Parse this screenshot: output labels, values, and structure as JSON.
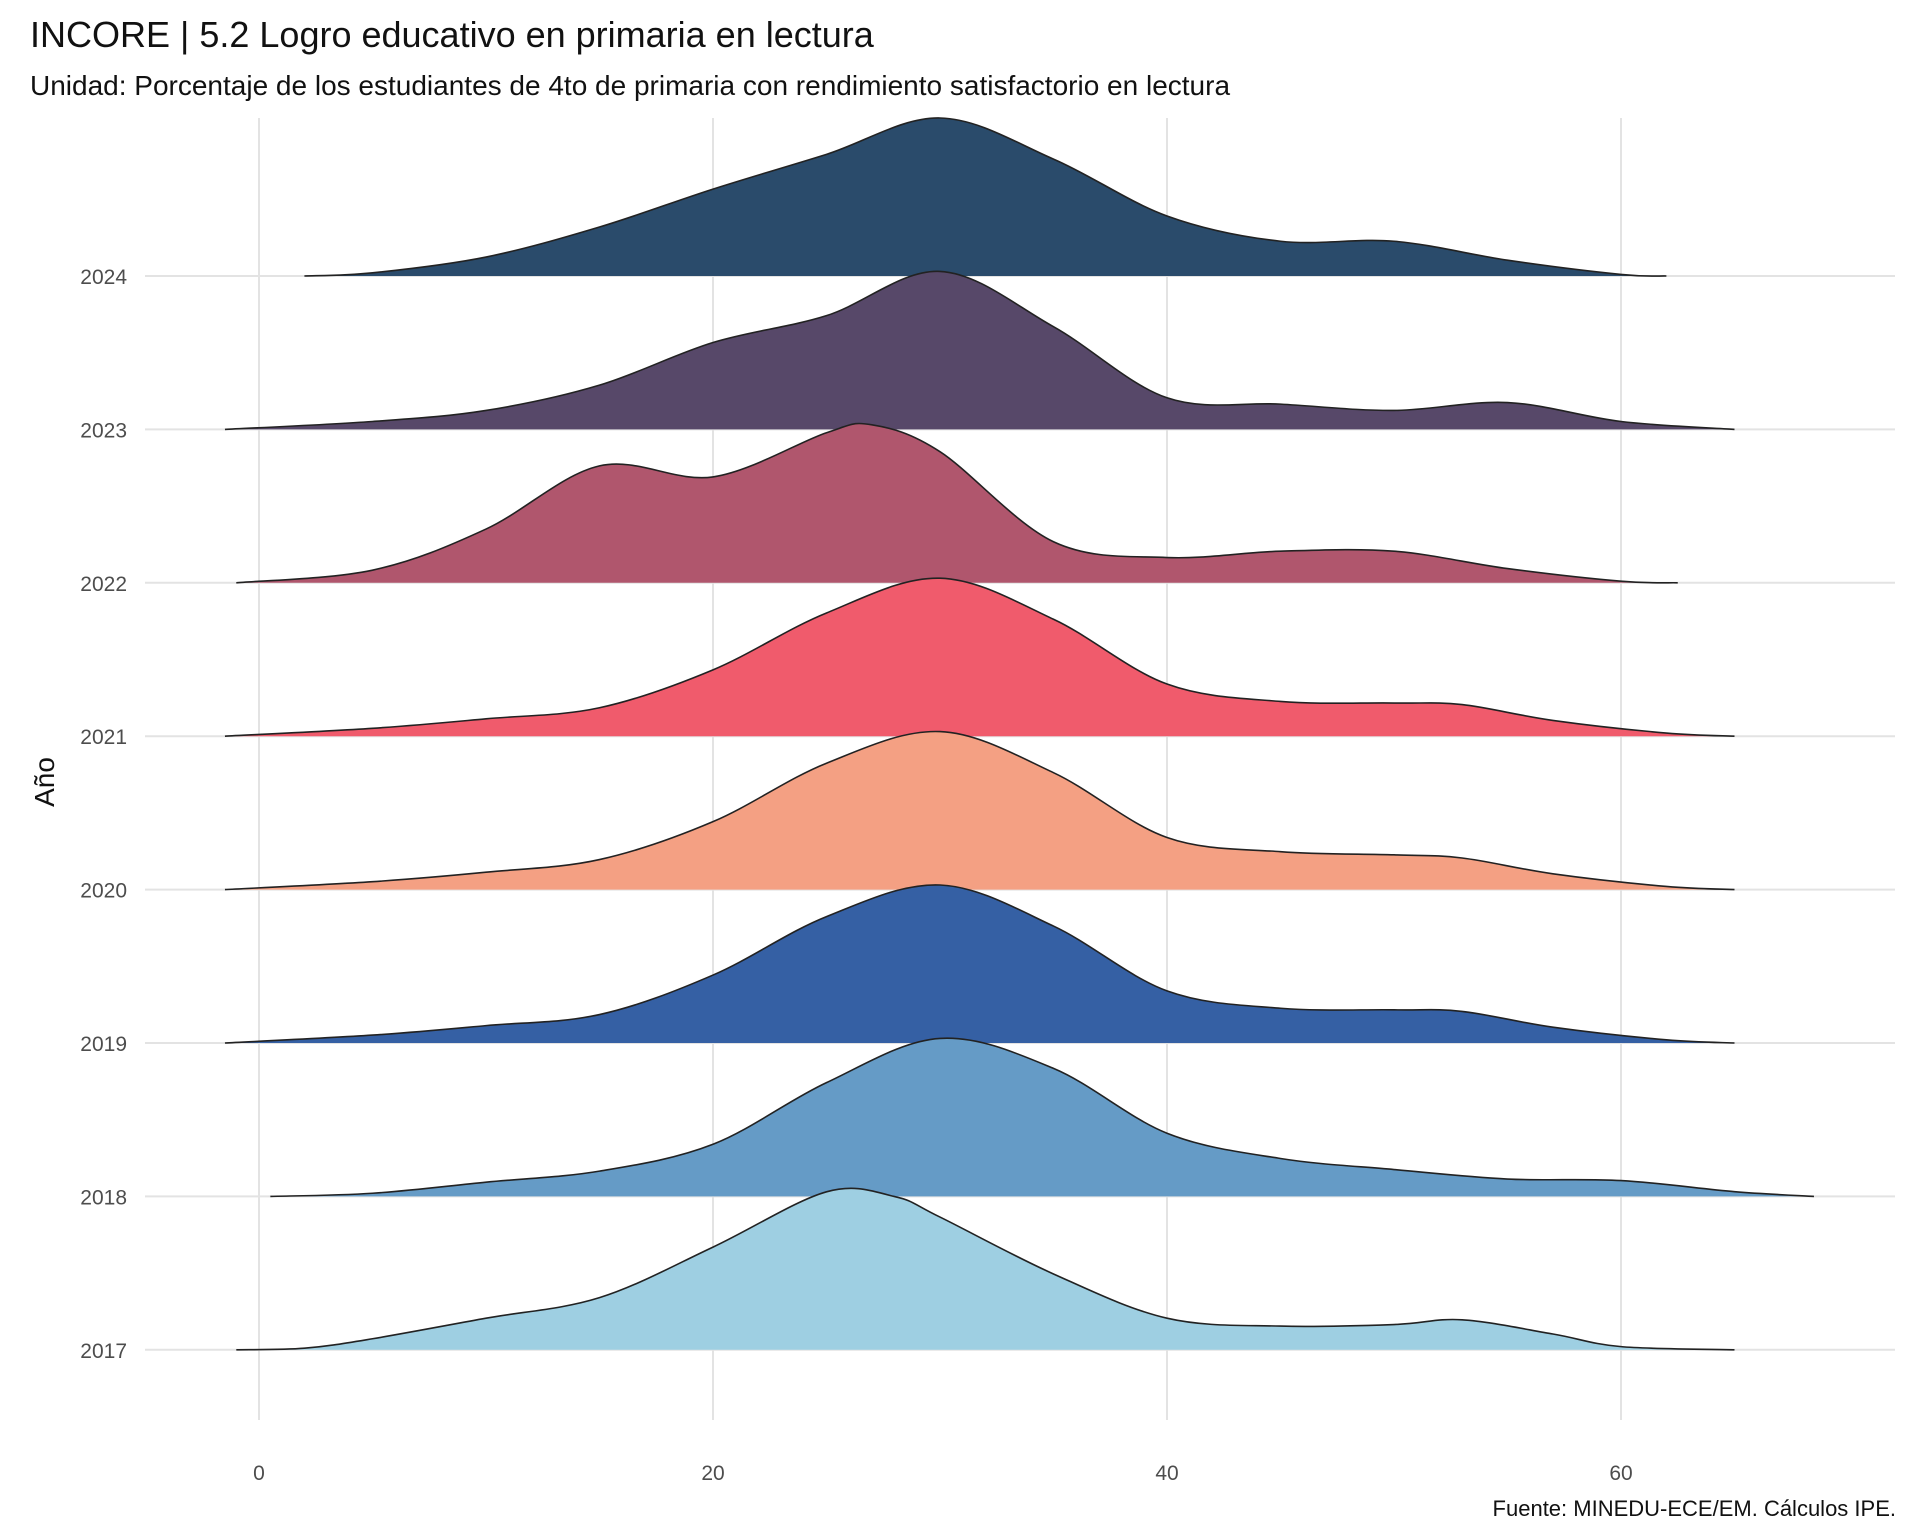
{
  "chart_data": {
    "type": "area",
    "subtype": "ridgeline-density",
    "title": "INCORE | 5.2 Logro educativo en primaria en lectura",
    "subtitle": "Unidad: Porcentaje de los estudiantes de 4to de primaria con rendimiento satisfactorio en lectura",
    "caption": "Fuente: MINEDU-ECE/EM. Cálculos IPE.",
    "xlabel": "",
    "ylabel": "Año",
    "xlim": [
      -5,
      72
    ],
    "xticks": [
      0,
      20,
      40,
      60
    ],
    "grid": true,
    "legend": "none",
    "categories": [
      "2017",
      "2018",
      "2019",
      "2020",
      "2021",
      "2022",
      "2023",
      "2024"
    ],
    "series": [
      {
        "name": "2017",
        "color": "#9ecfe2",
        "x": [
          -1,
          2,
          5,
          10,
          15,
          20,
          25,
          28,
          30,
          35,
          40,
          45,
          50,
          53,
          57,
          60,
          65
        ],
        "density": [
          0,
          0.01,
          0.07,
          0.2,
          0.33,
          0.65,
          1.0,
          0.97,
          0.84,
          0.48,
          0.2,
          0.15,
          0.16,
          0.19,
          0.1,
          0.02,
          0
        ]
      },
      {
        "name": "2018",
        "color": "#659bc6",
        "x": [
          0.5,
          5,
          10,
          15,
          20,
          25,
          30,
          35,
          40,
          45,
          50,
          55,
          60,
          65,
          68.5
        ],
        "density": [
          0,
          0.02,
          0.09,
          0.16,
          0.33,
          0.72,
          1.0,
          0.81,
          0.4,
          0.24,
          0.17,
          0.11,
          0.1,
          0.03,
          0
        ]
      },
      {
        "name": "2019",
        "color": "#3560a4",
        "x": [
          -1.5,
          5,
          10,
          15,
          20,
          25,
          30,
          35,
          40,
          45,
          50,
          53,
          57,
          62,
          65
        ],
        "density": [
          0,
          0.05,
          0.11,
          0.18,
          0.43,
          0.8,
          1.0,
          0.74,
          0.33,
          0.22,
          0.21,
          0.2,
          0.1,
          0.02,
          0
        ]
      },
      {
        "name": "2020",
        "color": "#f4a083",
        "x": [
          -1.5,
          5,
          10,
          15,
          20,
          25,
          30,
          35,
          40,
          45,
          50,
          53,
          57,
          62,
          65
        ],
        "density": [
          0,
          0.05,
          0.11,
          0.19,
          0.43,
          0.8,
          1.0,
          0.74,
          0.33,
          0.24,
          0.22,
          0.2,
          0.1,
          0.02,
          0
        ]
      },
      {
        "name": "2021",
        "color": "#f05b6c",
        "x": [
          -1.5,
          5,
          10,
          15,
          20,
          25,
          30,
          35,
          40,
          45,
          50,
          53,
          57,
          62,
          65
        ],
        "density": [
          0,
          0.05,
          0.11,
          0.18,
          0.42,
          0.78,
          1.0,
          0.74,
          0.33,
          0.22,
          0.21,
          0.2,
          0.1,
          0.02,
          0
        ]
      },
      {
        "name": "2022",
        "color": "#b0566d",
        "x": [
          -1,
          5,
          10,
          15,
          20,
          25,
          27,
          30,
          35,
          40,
          45,
          50,
          55,
          60,
          62.5
        ],
        "density": [
          0,
          0.08,
          0.34,
          0.74,
          0.67,
          0.95,
          1.0,
          0.83,
          0.26,
          0.16,
          0.2,
          0.2,
          0.09,
          0.01,
          0
        ]
      },
      {
        "name": "2023",
        "color": "#574869",
        "x": [
          -1.5,
          5,
          10,
          15,
          20,
          25,
          30,
          35,
          40,
          45,
          50,
          55,
          60,
          65
        ],
        "density": [
          0,
          0.05,
          0.12,
          0.28,
          0.55,
          0.72,
          1.0,
          0.65,
          0.2,
          0.16,
          0.12,
          0.17,
          0.05,
          0
        ]
      },
      {
        "name": "2024",
        "color": "#2a4b6b",
        "x": [
          2,
          5,
          10,
          15,
          20,
          25,
          30,
          35,
          40,
          45,
          50,
          55,
          60,
          62
        ],
        "density": [
          0,
          0.02,
          0.12,
          0.31,
          0.55,
          0.77,
          1.0,
          0.74,
          0.38,
          0.22,
          0.22,
          0.1,
          0.01,
          0
        ]
      }
    ]
  }
}
